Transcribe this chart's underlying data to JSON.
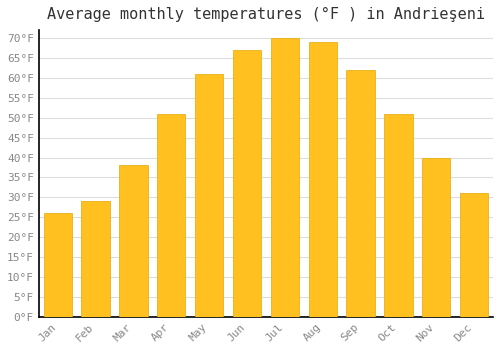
{
  "title": "Average monthly temperatures (°F ) in Andrieşeni",
  "months": [
    "Jan",
    "Feb",
    "Mar",
    "Apr",
    "May",
    "Jun",
    "Jul",
    "Aug",
    "Sep",
    "Oct",
    "Nov",
    "Dec"
  ],
  "values": [
    26,
    29,
    38,
    51,
    61,
    67,
    70,
    69,
    62,
    51,
    40,
    31
  ],
  "bar_color": "#FFC020",
  "bar_edge_color": "#E8A800",
  "background_color": "#FFFFFF",
  "grid_color": "#DDDDDD",
  "text_color": "#888888",
  "spine_color": "#000000",
  "ylim": [
    0,
    72
  ],
  "yticks": [
    0,
    5,
    10,
    15,
    20,
    25,
    30,
    35,
    40,
    45,
    50,
    55,
    60,
    65,
    70
  ],
  "ylabel_suffix": "°F",
  "title_fontsize": 11,
  "tick_fontsize": 8
}
